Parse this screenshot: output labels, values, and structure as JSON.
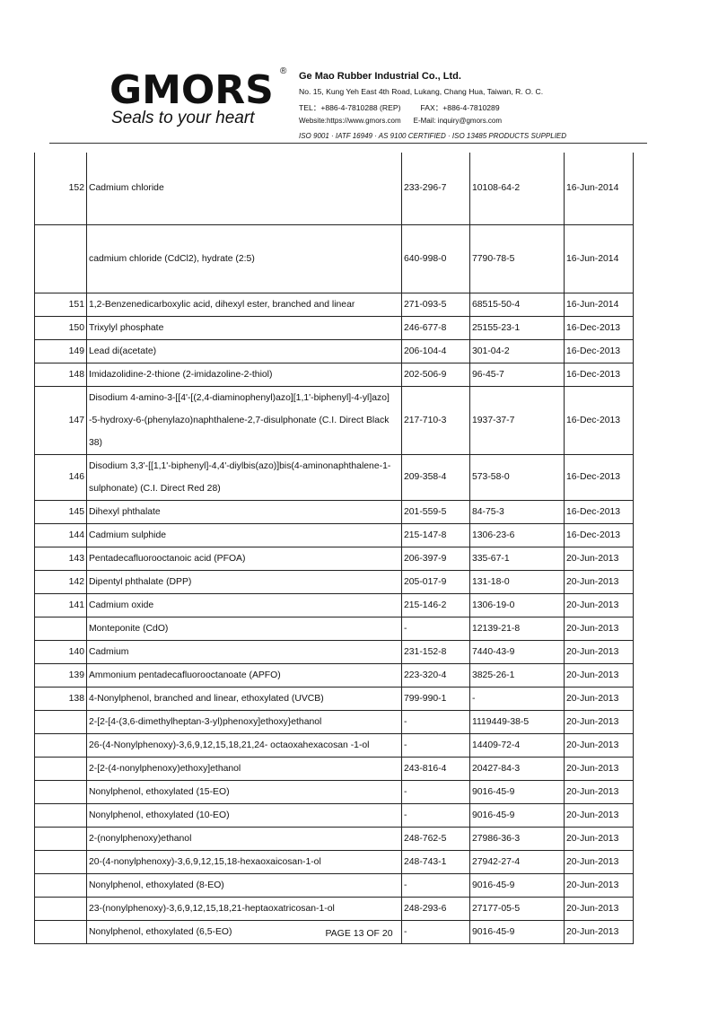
{
  "header": {
    "logo": "GMORS",
    "registered": "®",
    "slogan": "Seals to your heart",
    "company": "Ge Mao Rubber Industrial Co., Ltd.",
    "address": "No. 15, Kung Yeh East 4th Road, Lukang, Chang Hua, Taiwan, R. O. C.",
    "tel": "TEL：+886-4-7810288 (REP)",
    "fax": "FAX：+886-4-7810289",
    "website": "Website:https://www.gmors.com",
    "email": "E-Mail: inquiry@gmors.com",
    "certs": "ISO 9001  ·  IATF 16949  ·  AS 9100 CERTIFIED  ·  ISO 13485 PRODUCTS SUPPLIED"
  },
  "rows": [
    {
      "no": "152",
      "name": "Cadmium chloride",
      "ec": "233-296-7",
      "cas": "10108-64-2",
      "date": "16-Jun-2014"
    },
    {
      "no": "",
      "name": "cadmium chloride (CdCl2), hydrate (2:5)",
      "ec": "640-998-0",
      "cas": "7790-78-5",
      "date": "16-Jun-2014"
    },
    {
      "no": "151",
      "name": "1,2-Benzenedicarboxylic acid, dihexyl ester, branched and linear",
      "ec": "271-093-5",
      "cas": "68515-50-4",
      "date": "16-Jun-2014"
    },
    {
      "no": "150",
      "name": "Trixylyl phosphate",
      "ec": "246-677-8",
      "cas": "25155-23-1",
      "date": "16-Dec-2013"
    },
    {
      "no": "149",
      "name": "Lead di(acetate)",
      "ec": "206-104-4",
      "cas": "301-04-2",
      "date": "16-Dec-2013"
    },
    {
      "no": "148",
      "name": "Imidazolidine-2-thione (2-imidazoline-2-thiol)",
      "ec": "202-506-9",
      "cas": "96-45-7",
      "date": "16-Dec-2013"
    },
    {
      "no": "147",
      "name": "Disodium 4-amino-3-[[4'-[(2,4-diaminophenyl)azo][1,1'-biphenyl]-4-yl]azo] -5-hydroxy-6-(phenylazo)naphthalene-2,7-disulphonate (C.I. Direct Black 38)",
      "ec": "217-710-3",
      "cas": "1937-37-7",
      "date": "16-Dec-2013"
    },
    {
      "no": "146",
      "name": "Disodium 3,3'-[[1,1'-biphenyl]-4,4'-diylbis(azo)]bis(4-aminonaphthalene-1-sulphonate) (C.I. Direct Red 28)",
      "ec": "209-358-4",
      "cas": "573-58-0",
      "date": "16-Dec-2013"
    },
    {
      "no": "145",
      "name": "Dihexyl phthalate",
      "ec": "201-559-5",
      "cas": "84-75-3",
      "date": "16-Dec-2013"
    },
    {
      "no": "144",
      "name": "Cadmium sulphide",
      "ec": "215-147-8",
      "cas": "1306-23-6",
      "date": "16-Dec-2013"
    },
    {
      "no": "143",
      "name": "Pentadecafluorooctanoic acid (PFOA)",
      "ec": "206-397-9",
      "cas": "335-67-1",
      "date": "20-Jun-2013"
    },
    {
      "no": "142",
      "name": "Dipentyl phthalate (DPP)",
      "ec": "205-017-9",
      "cas": "131-18-0",
      "date": "20-Jun-2013"
    },
    {
      "no": "141",
      "name": "Cadmium oxide",
      "ec": "215-146-2",
      "cas": "1306-19-0",
      "date": "20-Jun-2013"
    },
    {
      "no": "",
      "name": "Monteponite (CdO)",
      "ec": "-",
      "cas": "12139-21-8",
      "date": "20-Jun-2013"
    },
    {
      "no": "140",
      "name": "Cadmium",
      "ec": "231-152-8",
      "cas": "7440-43-9",
      "date": "20-Jun-2013"
    },
    {
      "no": "139",
      "name": "Ammonium pentadecafluorooctanoate (APFO)",
      "ec": "223-320-4",
      "cas": "3825-26-1",
      "date": "20-Jun-2013"
    },
    {
      "no": "138",
      "name": "4-Nonylphenol, branched and linear, ethoxylated (UVCB)",
      "ec": "799-990-1",
      "cas": "-",
      "date": "20-Jun-2013"
    },
    {
      "no": "",
      "name": "2-[2-[4-(3,6-dimethylheptan-3-yl)phenoxy]ethoxy}ethanol",
      "ec": "-",
      "cas": "1119449-38-5",
      "date": "20-Jun-2013"
    },
    {
      "no": "",
      "name": "26-(4-Nonylphenoxy)-3,6,9,12,15,18,21,24- octaoxahexacosan -1-ol",
      "ec": "-",
      "cas": "14409-72-4",
      "date": "20-Jun-2013"
    },
    {
      "no": "",
      "name": "2-[2-(4-nonylphenoxy)ethoxy]ethanol",
      "ec": "243-816-4",
      "cas": "20427-84-3",
      "date": "20-Jun-2013"
    },
    {
      "no": "",
      "name": "Nonylphenol, ethoxylated (15-EO)",
      "ec": "-",
      "cas": "9016-45-9",
      "date": "20-Jun-2013"
    },
    {
      "no": "",
      "name": "Nonylphenol, ethoxylated (10-EO)",
      "ec": "-",
      "cas": "9016-45-9",
      "date": "20-Jun-2013"
    },
    {
      "no": "",
      "name": "2-(nonylphenoxy)ethanol",
      "ec": "248-762-5",
      "cas": "27986-36-3",
      "date": "20-Jun-2013"
    },
    {
      "no": "",
      "name": "20-(4-nonylphenoxy)-3,6,9,12,15,18-hexaoxaicosan-1-ol",
      "ec": "248-743-1",
      "cas": "27942-27-4",
      "date": "20-Jun-2013"
    },
    {
      "no": "",
      "name": "Nonylphenol, ethoxylated (8-EO)",
      "ec": "-",
      "cas": "9016-45-9",
      "date": "20-Jun-2013"
    },
    {
      "no": "",
      "name": "23-(nonylphenoxy)-3,6,9,12,15,18,21-heptaoxatricosan-1-ol",
      "ec": "248-293-6",
      "cas": "27177-05-5",
      "date": "20-Jun-2013"
    },
    {
      "no": "",
      "name": "Nonylphenol, ethoxylated (6,5-EO)",
      "ec": "-",
      "cas": "9016-45-9",
      "date": "20-Jun-2013"
    }
  ],
  "footer": {
    "page_label": "PAGE  13  OF 20"
  }
}
